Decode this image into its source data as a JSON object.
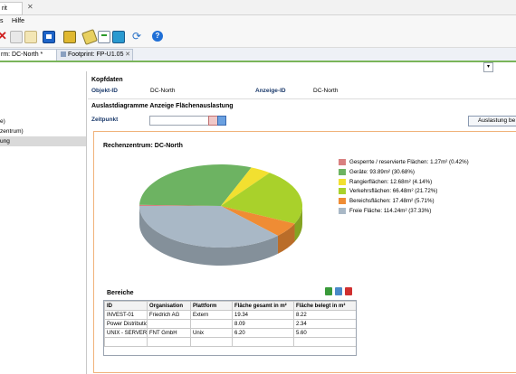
{
  "window": {
    "tab_fragment": "rit"
  },
  "menu": {
    "items": [
      "s",
      "Hilfe"
    ]
  },
  "toolbar": {
    "icons": [
      "delete-icon",
      "copy-icon",
      "paste-icon",
      "dialog-icon",
      "objects-icon",
      "edit-icon",
      "checklist-icon",
      "network-icon",
      "refresh-icon",
      "help-icon"
    ]
  },
  "tabs": [
    {
      "label": "rm: DC-North *",
      "active": true
    },
    {
      "label": "Footprint: FP-U1.05",
      "active": false
    }
  ],
  "sidebar": {
    "items": [
      "",
      "e)",
      "zentrum)",
      "ung"
    ]
  },
  "kopfdaten": {
    "heading": "Kopfdaten",
    "objekt_id_label": "Objekt-ID",
    "objekt_id_value": "DC-North",
    "anzeige_id_label": "Anzeige-ID",
    "anzeige_id_value": "DC-North"
  },
  "auslast": {
    "heading": "Auslastdiagramme Anzeige Flächenauslastung",
    "zeitpunkt_label": "Zeitpunkt",
    "zeitpunkt_value": "",
    "button_label": "Auslastung be"
  },
  "chart_title": "Rechenzentrum: DC-North",
  "chart_data": {
    "type": "pie",
    "title": "Rechenzentrum: DC-North",
    "legend_position": "right",
    "series": [
      {
        "name": "Gesperrte / reservierte Flächen: 1.27m² (0.42%)",
        "value": 0.42,
        "color": "#d98080"
      },
      {
        "name": "Geräte: 93.89m² (30.68%)",
        "value": 30.68,
        "color": "#6db362"
      },
      {
        "name": "Rangierflächen: 12.68m² (4.14%)",
        "value": 4.14,
        "color": "#f2e030"
      },
      {
        "name": "Verkehrsflächen: 66.48m² (21.72%)",
        "value": 21.72,
        "color": "#a9d12b"
      },
      {
        "name": "Bereichsflächen: 17.48m² (5.71%)",
        "value": 5.71,
        "color": "#ef8c34"
      },
      {
        "name": "Freie Fläche: 114.24m² (37.33%)",
        "value": 37.33,
        "color": "#a9b8c6"
      }
    ]
  },
  "bereiche": {
    "heading": "Bereiche",
    "columns": [
      "ID",
      "Organisation",
      "Plattform",
      "Fläche gesamt in m²",
      "Fläche belegt in m²"
    ],
    "rows": [
      [
        "INVEST-01",
        "Friedrich AG",
        "Extern",
        "19.34",
        "8.22"
      ],
      [
        "Power Distributio",
        "",
        "",
        "8.09",
        "2.34"
      ],
      [
        "UNIX - SERVERFA",
        "FNT GmbH",
        "Unix",
        "6.20",
        "5.60"
      ]
    ]
  }
}
